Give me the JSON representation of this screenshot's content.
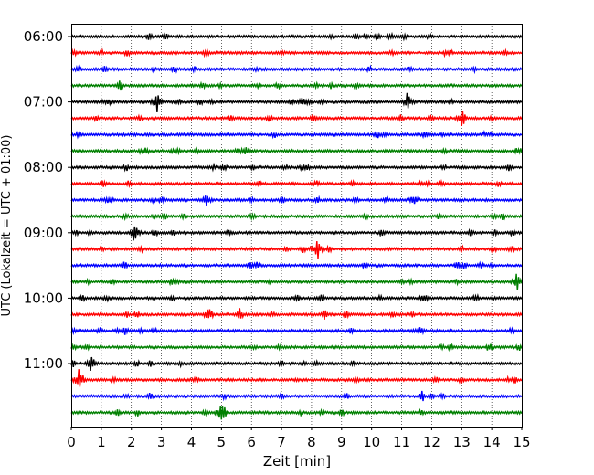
{
  "chart_data": {
    "type": "line",
    "subtype": "helicorder",
    "title": "",
    "xlabel": "Zeit  [min]",
    "ylabel": "UTC (Lokalzeit = UTC + 01:00)",
    "xlim": [
      0,
      15
    ],
    "x_ticks": [
      "0",
      "1",
      "2",
      "3",
      "4",
      "5",
      "6",
      "7",
      "8",
      "9",
      "10",
      "11",
      "12",
      "13",
      "14",
      "15"
    ],
    "y_ticks": [
      "06:00",
      "07:00",
      "08:00",
      "09:00",
      "10:00",
      "11:00"
    ],
    "vertical_grid": true,
    "colors": [
      "#000000",
      "#ff0000",
      "#0000ff",
      "#008000"
    ],
    "row_starts": [
      "06:00",
      "06:15",
      "06:30",
      "06:45",
      "07:00",
      "07:15",
      "07:30",
      "07:45",
      "08:00",
      "08:15",
      "08:30",
      "08:45",
      "09:00",
      "09:15",
      "09:30",
      "09:45",
      "10:00",
      "10:15",
      "10:30",
      "10:45",
      "11:00",
      "11:15",
      "11:30",
      "11:45"
    ],
    "events": [
      {
        "row": 4,
        "x": 2.85,
        "amp": 1.0
      },
      {
        "row": 4,
        "x": 7.7,
        "amp": 0.5
      },
      {
        "row": 4,
        "x": 11.2,
        "amp": 1.0
      },
      {
        "row": 5,
        "x": 13.0,
        "amp": 0.6
      },
      {
        "row": 7,
        "x": 5.8,
        "amp": 0.45
      },
      {
        "row": 10,
        "x": 4.5,
        "amp": 0.55
      },
      {
        "row": 10,
        "x": 11.4,
        "amp": 0.5
      },
      {
        "row": 12,
        "x": 2.1,
        "amp": 1.0
      },
      {
        "row": 13,
        "x": 8.2,
        "amp": 1.0
      },
      {
        "row": 15,
        "x": 14.85,
        "amp": 0.8
      },
      {
        "row": 17,
        "x": 4.55,
        "amp": 0.55
      },
      {
        "row": 17,
        "x": 5.6,
        "amp": 0.55
      },
      {
        "row": 18,
        "x": 11.6,
        "amp": 0.4
      },
      {
        "row": 20,
        "x": 0.65,
        "amp": 0.6
      },
      {
        "row": 21,
        "x": 0.25,
        "amp": 1.0
      },
      {
        "row": 23,
        "x": 5.0,
        "amp": 0.8
      }
    ]
  }
}
